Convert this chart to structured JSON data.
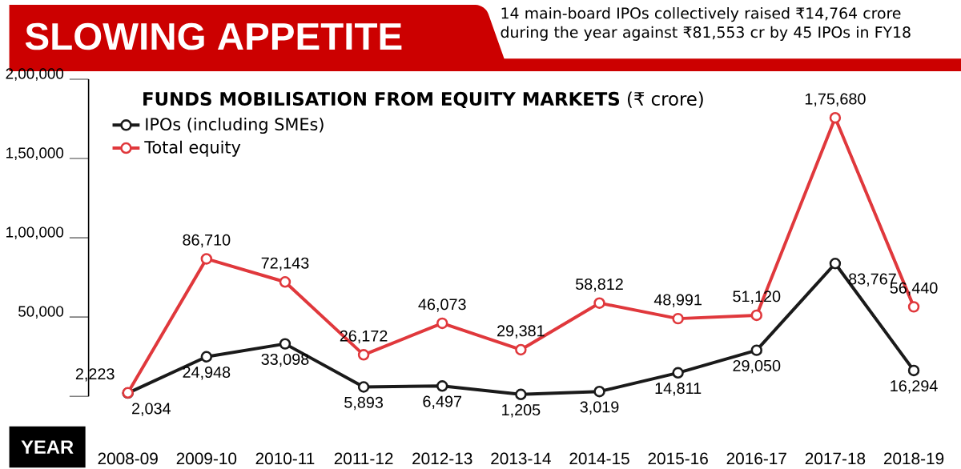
{
  "chart_data": {
    "type": "line",
    "title": "SLOWING APPETITE",
    "subtitle": "14 main-board IPOs collectively raised ₹14,764 crore during the year against ₹81,553 cr by 45 IPOs in FY18",
    "annotations": [
      "**FUNDS MOBILISATION FROM EQUITY MARKETS** (₹ crore)",
      "YEAR"
    ],
    "categories": [
      "2008-09",
      "2009-10",
      "2010-11",
      "2011-12",
      "2012-13",
      "2013-14",
      "2014-15",
      "2015-16",
      "2016-17",
      "2017-18",
      "2018-19"
    ],
    "series": [
      {
        "name": "IPOs (including SMEs)",
        "color": "#1a1a1a",
        "values": [
          2034,
          24948,
          33098,
          5893,
          6497,
          1205,
          3019,
          14811,
          29050,
          83767,
          16294
        ],
        "value_labels": [
          "2,034",
          "24,948",
          "33,098",
          "5,893",
          "6,497",
          "1,205",
          "3,019",
          "14,811",
          "29,050",
          "83,767",
          "16,294"
        ]
      },
      {
        "name": "Total equity",
        "color": "#e0383c",
        "values": [
          2223,
          86710,
          72143,
          26172,
          46073,
          29381,
          58812,
          48991,
          51120,
          175680,
          56440
        ],
        "value_labels": [
          "2,223",
          "86,710",
          "72,143",
          "26,172",
          "46,073",
          "29,381",
          "58,812",
          "48,991",
          "51,120",
          "1,75,680",
          "56,440"
        ]
      }
    ],
    "ylim": [
      0,
      200000
    ],
    "yticks": [
      {
        "value": 0,
        "label": null
      },
      {
        "value": 50000,
        "label": "50,000"
      },
      {
        "value": 100000,
        "label": "1,00,000"
      },
      {
        "value": 150000,
        "label": "1,50,000"
      },
      {
        "value": 200000,
        "label": "2,00,000"
      }
    ],
    "legend": "top left",
    "marker": "circle",
    "line_style": "solid",
    "grid": false
  }
}
